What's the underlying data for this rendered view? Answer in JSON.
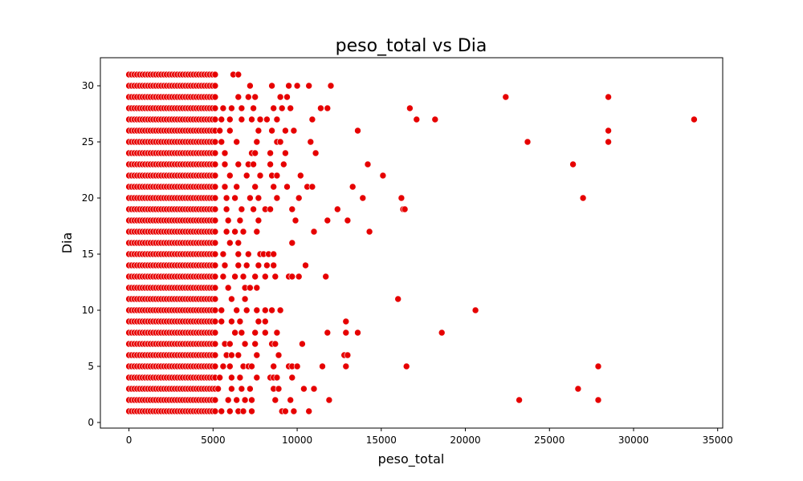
{
  "chart_data": {
    "type": "scatter",
    "title": "peso_total vs Dia",
    "xlabel": "peso_total",
    "ylabel": "Dia",
    "xlim": [
      -1700,
      35300
    ],
    "ylim": [
      -0.5,
      32.5
    ],
    "xticks": [
      0,
      5000,
      10000,
      15000,
      20000,
      25000,
      30000,
      35000
    ],
    "yticks": [
      0,
      5,
      10,
      15,
      20,
      25,
      30
    ],
    "grid": false,
    "legend": "none",
    "marker_color": "#e60000",
    "marker_edge": "#ffffff",
    "dense_band": {
      "x_range": [
        0,
        5200
      ],
      "y_range": [
        1,
        31
      ]
    },
    "points": [
      [
        6200,
        31
      ],
      [
        6500,
        31
      ],
      [
        7200,
        30
      ],
      [
        8500,
        30
      ],
      [
        9500,
        30
      ],
      [
        10000,
        30
      ],
      [
        10700,
        30
      ],
      [
        12000,
        30
      ],
      [
        6500,
        29
      ],
      [
        7100,
        29
      ],
      [
        7500,
        29
      ],
      [
        9000,
        29
      ],
      [
        9400,
        29
      ],
      [
        22400,
        29
      ],
      [
        28500,
        29
      ],
      [
        5600,
        28
      ],
      [
        6100,
        28
      ],
      [
        6700,
        28
      ],
      [
        7400,
        28
      ],
      [
        8600,
        28
      ],
      [
        9100,
        28
      ],
      [
        9600,
        28
      ],
      [
        11400,
        28
      ],
      [
        11800,
        28
      ],
      [
        16700,
        28
      ],
      [
        5500,
        27
      ],
      [
        6000,
        27
      ],
      [
        6700,
        27
      ],
      [
        7300,
        27
      ],
      [
        7800,
        27
      ],
      [
        8200,
        27
      ],
      [
        8800,
        27
      ],
      [
        10900,
        27
      ],
      [
        17100,
        27
      ],
      [
        18200,
        27
      ],
      [
        33600,
        27
      ],
      [
        5400,
        26
      ],
      [
        6000,
        26
      ],
      [
        7700,
        26
      ],
      [
        8500,
        26
      ],
      [
        9300,
        26
      ],
      [
        9800,
        26
      ],
      [
        13600,
        26
      ],
      [
        28500,
        26
      ],
      [
        5500,
        25
      ],
      [
        6400,
        25
      ],
      [
        7600,
        25
      ],
      [
        8800,
        25
      ],
      [
        9000,
        25
      ],
      [
        10800,
        25
      ],
      [
        23700,
        25
      ],
      [
        28500,
        25
      ],
      [
        5700,
        24
      ],
      [
        7300,
        24
      ],
      [
        7500,
        24
      ],
      [
        8400,
        24
      ],
      [
        9300,
        24
      ],
      [
        11100,
        24
      ],
      [
        5700,
        23
      ],
      [
        6500,
        23
      ],
      [
        7100,
        23
      ],
      [
        7400,
        23
      ],
      [
        8400,
        23
      ],
      [
        9200,
        23
      ],
      [
        14200,
        23
      ],
      [
        26400,
        23
      ],
      [
        6000,
        22
      ],
      [
        7000,
        22
      ],
      [
        7800,
        22
      ],
      [
        8500,
        22
      ],
      [
        8800,
        22
      ],
      [
        10200,
        22
      ],
      [
        15100,
        22
      ],
      [
        5700,
        21
      ],
      [
        6400,
        21
      ],
      [
        7500,
        21
      ],
      [
        8600,
        21
      ],
      [
        9400,
        21
      ],
      [
        10600,
        21
      ],
      [
        10900,
        21
      ],
      [
        13300,
        21
      ],
      [
        5800,
        20
      ],
      [
        6300,
        20
      ],
      [
        7200,
        20
      ],
      [
        7700,
        20
      ],
      [
        8800,
        20
      ],
      [
        10100,
        20
      ],
      [
        13900,
        20
      ],
      [
        16200,
        20
      ],
      [
        27000,
        20
      ],
      [
        5800,
        19
      ],
      [
        6700,
        19
      ],
      [
        7400,
        19
      ],
      [
        8100,
        19
      ],
      [
        8400,
        19
      ],
      [
        9700,
        19
      ],
      [
        12400,
        19
      ],
      [
        16300,
        19
      ],
      [
        16400,
        19
      ],
      [
        5900,
        18
      ],
      [
        6600,
        18
      ],
      [
        7700,
        18
      ],
      [
        9900,
        18
      ],
      [
        11800,
        18
      ],
      [
        13000,
        18
      ],
      [
        5800,
        17
      ],
      [
        6300,
        17
      ],
      [
        6800,
        17
      ],
      [
        7600,
        17
      ],
      [
        11000,
        17
      ],
      [
        14300,
        17
      ],
      [
        6000,
        16
      ],
      [
        6500,
        16
      ],
      [
        9700,
        16
      ],
      [
        5600,
        15
      ],
      [
        6500,
        15
      ],
      [
        7100,
        15
      ],
      [
        7800,
        15
      ],
      [
        8000,
        15
      ],
      [
        8300,
        15
      ],
      [
        8600,
        15
      ],
      [
        5700,
        14
      ],
      [
        6500,
        14
      ],
      [
        7000,
        14
      ],
      [
        7700,
        14
      ],
      [
        8200,
        14
      ],
      [
        8600,
        14
      ],
      [
        10500,
        14
      ],
      [
        5600,
        13
      ],
      [
        6300,
        13
      ],
      [
        6800,
        13
      ],
      [
        7500,
        13
      ],
      [
        8100,
        13
      ],
      [
        8700,
        13
      ],
      [
        9500,
        13
      ],
      [
        9700,
        13
      ],
      [
        10100,
        13
      ],
      [
        11700,
        13
      ],
      [
        5900,
        12
      ],
      [
        6900,
        12
      ],
      [
        7200,
        12
      ],
      [
        7600,
        12
      ],
      [
        6100,
        11
      ],
      [
        6900,
        11
      ],
      [
        16000,
        11
      ],
      [
        5500,
        10
      ],
      [
        6400,
        10
      ],
      [
        7000,
        10
      ],
      [
        7600,
        10
      ],
      [
        8100,
        10
      ],
      [
        8500,
        10
      ],
      [
        9000,
        10
      ],
      [
        20600,
        10
      ],
      [
        5500,
        9
      ],
      [
        6100,
        9
      ],
      [
        6600,
        9
      ],
      [
        7700,
        9
      ],
      [
        8100,
        9
      ],
      [
        12900,
        9
      ],
      [
        6300,
        8
      ],
      [
        6700,
        8
      ],
      [
        7500,
        8
      ],
      [
        8100,
        8
      ],
      [
        8800,
        8
      ],
      [
        11800,
        8
      ],
      [
        12900,
        8
      ],
      [
        13600,
        8
      ],
      [
        18600,
        8
      ],
      [
        5700,
        7
      ],
      [
        6000,
        7
      ],
      [
        6900,
        7
      ],
      [
        7500,
        7
      ],
      [
        8500,
        7
      ],
      [
        8700,
        7
      ],
      [
        10300,
        7
      ],
      [
        5800,
        6
      ],
      [
        6100,
        6
      ],
      [
        6500,
        6
      ],
      [
        7600,
        6
      ],
      [
        8900,
        6
      ],
      [
        12800,
        6
      ],
      [
        13000,
        6
      ],
      [
        5600,
        5
      ],
      [
        6000,
        5
      ],
      [
        6800,
        5
      ],
      [
        7100,
        5
      ],
      [
        7300,
        5
      ],
      [
        8600,
        5
      ],
      [
        9500,
        5
      ],
      [
        9700,
        5
      ],
      [
        10000,
        5
      ],
      [
        11500,
        5
      ],
      [
        12900,
        5
      ],
      [
        16500,
        5
      ],
      [
        27900,
        5
      ],
      [
        5400,
        4
      ],
      [
        6100,
        4
      ],
      [
        6600,
        4
      ],
      [
        7600,
        4
      ],
      [
        8400,
        4
      ],
      [
        8600,
        4
      ],
      [
        8800,
        4
      ],
      [
        9700,
        4
      ],
      [
        5300,
        3
      ],
      [
        6100,
        3
      ],
      [
        6700,
        3
      ],
      [
        7200,
        3
      ],
      [
        8600,
        3
      ],
      [
        8900,
        3
      ],
      [
        10400,
        3
      ],
      [
        11000,
        3
      ],
      [
        26700,
        3
      ],
      [
        5900,
        2
      ],
      [
        6400,
        2
      ],
      [
        6900,
        2
      ],
      [
        7300,
        2
      ],
      [
        8700,
        2
      ],
      [
        9600,
        2
      ],
      [
        11900,
        2
      ],
      [
        23200,
        2
      ],
      [
        27900,
        2
      ],
      [
        5500,
        1
      ],
      [
        6000,
        1
      ],
      [
        6500,
        1
      ],
      [
        6800,
        1
      ],
      [
        7300,
        1
      ],
      [
        9100,
        1
      ],
      [
        9300,
        1
      ],
      [
        9800,
        1
      ],
      [
        10700,
        1
      ]
    ]
  }
}
